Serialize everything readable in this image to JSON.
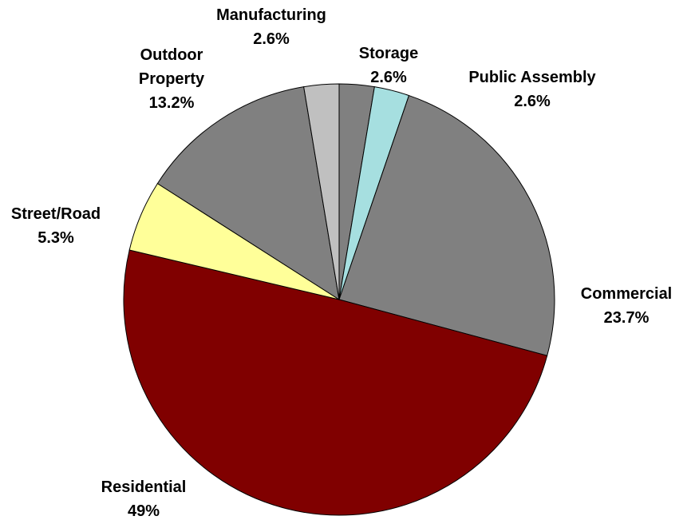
{
  "chart_data": {
    "type": "pie",
    "categories": [
      "Storage",
      "Public Assembly",
      "Commercial",
      "Residential",
      "Street/Road",
      "Outdoor Property",
      "Manufacturing"
    ],
    "values": [
      2.6,
      2.6,
      23.7,
      49,
      5.3,
      13.2,
      2.6
    ],
    "value_labels": [
      "2.6%",
      "2.6%",
      "23.7%",
      "49%",
      "5.3%",
      "13.2%",
      "2.6%"
    ],
    "colors": [
      "#808080",
      "#a6dfe0",
      "#808080",
      "#800000",
      "#ffff99",
      "#808080",
      "#c0c0c0"
    ]
  }
}
